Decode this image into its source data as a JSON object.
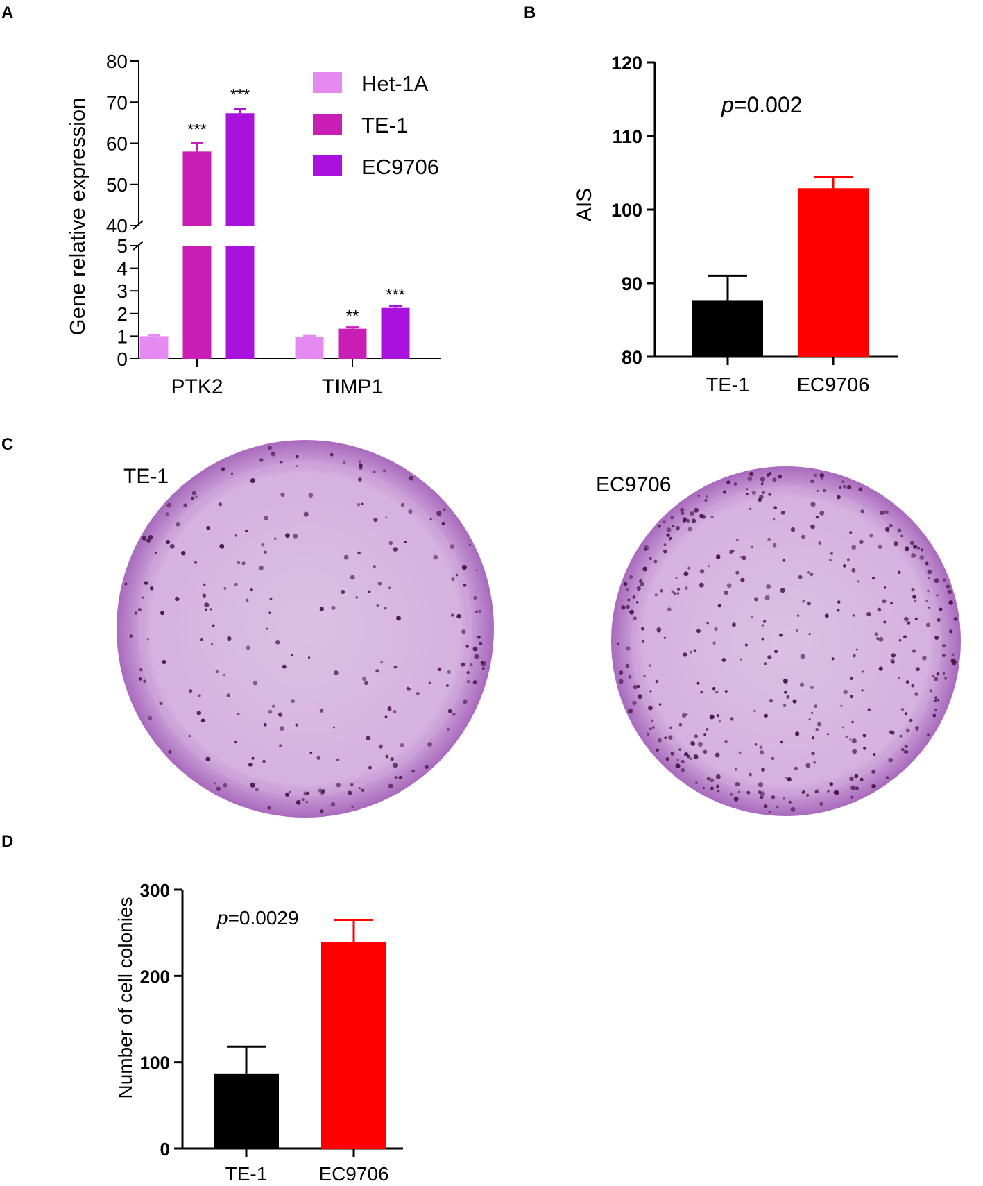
{
  "panels": {
    "a": "A",
    "b": "B",
    "c": "C",
    "d": "D"
  },
  "colors": {
    "het1a": "#e48af0",
    "te1_a": "#c81eb4",
    "ec9706_a": "#a812dc",
    "te1_bar": "#000000",
    "ec9706_bar": "#ff0000",
    "dish_rim": "#b079c4",
    "dish_inner": "#dbb8e2",
    "colony": "#4a1848"
  },
  "chart_data": [
    {
      "id": "A",
      "type": "bar",
      "ylabel": "Gene relative expression",
      "categories": [
        "PTK2",
        "TIMP1"
      ],
      "y_broken": true,
      "ylim_lower": [
        0,
        5
      ],
      "ylim_upper": [
        40,
        80
      ],
      "yticks_lower": [
        "0",
        "1",
        "2",
        "3",
        "4",
        "5"
      ],
      "yticks_upper": [
        "40",
        "50",
        "60",
        "70",
        "80"
      ],
      "series": [
        {
          "name": "Het-1A",
          "values": [
            1.0,
            0.97
          ],
          "errors": [
            0.05,
            0.04
          ],
          "sig": [
            "",
            ""
          ]
        },
        {
          "name": "TE-1",
          "values": [
            58,
            1.33
          ],
          "errors": [
            2.0,
            0.06
          ],
          "sig": [
            "***",
            "**"
          ]
        },
        {
          "name": "EC9706",
          "values": [
            67.3,
            2.25
          ],
          "errors": [
            1.1,
            0.09
          ],
          "sig": [
            "***",
            "***"
          ]
        }
      ],
      "legend": "top-right"
    },
    {
      "id": "B",
      "type": "bar",
      "ylabel": "AIS",
      "categories": [
        "TE-1",
        "EC9706"
      ],
      "values": [
        87.6,
        102.9
      ],
      "errors": [
        3.4,
        1.5
      ],
      "ylim": [
        80,
        120
      ],
      "yticks": [
        "80",
        "90",
        "100",
        "110",
        "120"
      ],
      "annotation": {
        "p": "p",
        "rest": "=0.002"
      }
    },
    {
      "id": "D",
      "type": "bar",
      "ylabel": "Number of cell colonies",
      "categories": [
        "TE-1",
        "EC9706"
      ],
      "values": [
        87,
        239
      ],
      "errors": [
        31,
        26
      ],
      "ylim": [
        0,
        300
      ],
      "yticks": [
        "0",
        "100",
        "200",
        "300"
      ],
      "annotation": {
        "p": "p",
        "rest": "=0.0029"
      }
    }
  ],
  "panel_c": {
    "labels": [
      "TE-1",
      "EC9706"
    ]
  }
}
